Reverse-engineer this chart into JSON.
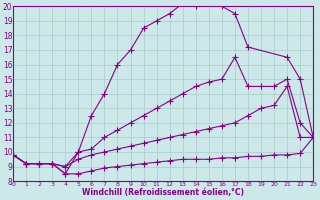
{
  "xlabel": "Windchill (Refroidissement éolien,°C)",
  "bg_color": "#cce8e8",
  "line_color": "#880088",
  "grid_color": "#aacccc",
  "xmin": 0,
  "xmax": 23,
  "ymin": 8,
  "ymax": 20,
  "line1_x": [
    0,
    1,
    2,
    3,
    4,
    5,
    6,
    7,
    8,
    9,
    10,
    11,
    12,
    13,
    14,
    15,
    16,
    17,
    18,
    21,
    22,
    23
  ],
  "line1_y": [
    9.8,
    9.2,
    9.2,
    9.2,
    8.5,
    10.0,
    12.5,
    14.0,
    16.0,
    17.0,
    18.5,
    19.0,
    19.5,
    20.2,
    20.0,
    20.2,
    20.0,
    19.5,
    17.2,
    16.5,
    15.0,
    11.0
  ],
  "line2_x": [
    0,
    1,
    2,
    3,
    4,
    5,
    6,
    7,
    8,
    9,
    10,
    11,
    12,
    13,
    14,
    15,
    16,
    17,
    18,
    19,
    20,
    21,
    22,
    23
  ],
  "line2_y": [
    9.8,
    9.2,
    9.2,
    9.2,
    9.0,
    10.0,
    10.2,
    11.0,
    11.5,
    12.0,
    12.5,
    13.0,
    13.5,
    14.0,
    14.5,
    14.8,
    15.0,
    16.5,
    14.5,
    14.5,
    14.5,
    15.0,
    12.0,
    11.0
  ],
  "line3_x": [
    0,
    1,
    2,
    3,
    4,
    5,
    6,
    7,
    8,
    9,
    10,
    11,
    12,
    13,
    14,
    15,
    16,
    17,
    18,
    19,
    20,
    21,
    22,
    23
  ],
  "line3_y": [
    9.8,
    9.2,
    9.2,
    9.2,
    9.0,
    9.5,
    9.8,
    10.0,
    10.2,
    10.4,
    10.6,
    10.8,
    11.0,
    11.2,
    11.4,
    11.6,
    11.8,
    12.0,
    12.5,
    13.0,
    13.2,
    14.5,
    11.0,
    11.0
  ],
  "line4_x": [
    0,
    1,
    2,
    3,
    4,
    5,
    6,
    7,
    8,
    9,
    10,
    11,
    12,
    13,
    14,
    15,
    16,
    17,
    18,
    19,
    20,
    21,
    22,
    23
  ],
  "line4_y": [
    9.8,
    9.2,
    9.2,
    9.2,
    8.5,
    8.5,
    8.7,
    8.9,
    9.0,
    9.1,
    9.2,
    9.3,
    9.4,
    9.5,
    9.5,
    9.5,
    9.6,
    9.6,
    9.7,
    9.7,
    9.8,
    9.8,
    9.9,
    11.0
  ],
  "xticks": [
    0,
    1,
    2,
    3,
    4,
    5,
    6,
    7,
    8,
    9,
    10,
    11,
    12,
    13,
    14,
    15,
    16,
    17,
    18,
    19,
    20,
    21,
    22,
    23
  ],
  "yticks": [
    8,
    9,
    10,
    11,
    12,
    13,
    14,
    15,
    16,
    17,
    18,
    19,
    20
  ]
}
